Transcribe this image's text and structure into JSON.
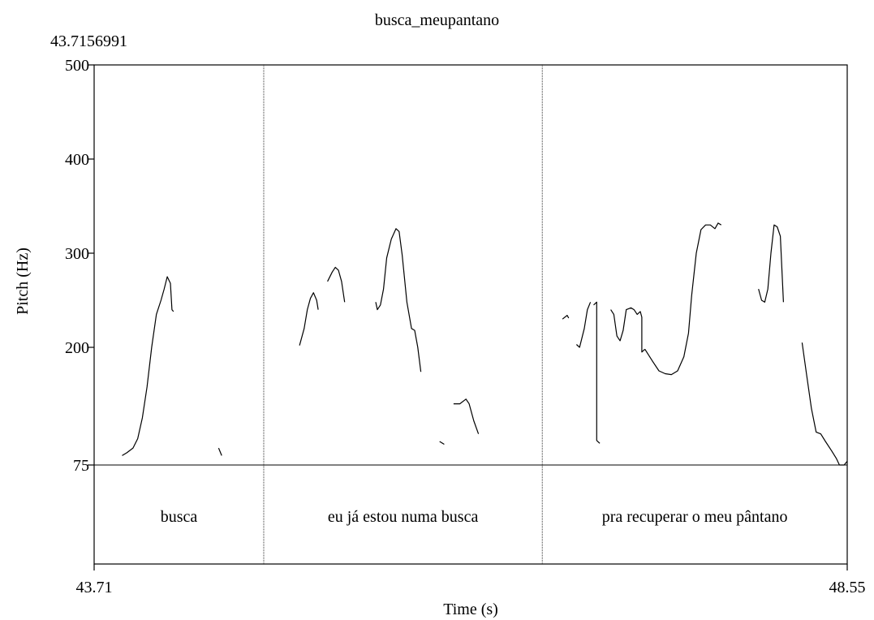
{
  "chart_data": {
    "type": "line",
    "title": "",
    "subtitle": "busca_meupantano",
    "start_readout": "43.7156991",
    "xlabel": "Time (s)",
    "ylabel": "Pitch (Hz)",
    "xlim": [
      43.71,
      48.55
    ],
    "ylim": [
      75,
      500
    ],
    "x_tick_labels": [
      "43.71",
      "48.55"
    ],
    "y_ticks": [
      {
        "value": 500,
        "label": "500"
      },
      {
        "value": 400,
        "label": "400"
      },
      {
        "value": 300,
        "label": "300"
      },
      {
        "value": 200,
        "label": "200"
      },
      {
        "value": 75,
        "label": "75"
      }
    ],
    "segment_boundaries": [
      44.8,
      46.59
    ],
    "segments": [
      {
        "start": 43.71,
        "end": 44.8,
        "text": "busca"
      },
      {
        "start": 44.8,
        "end": 46.59,
        "text": "eu já estou numa busca"
      },
      {
        "start": 46.59,
        "end": 48.55,
        "text": "pra recuperar o meu pântano"
      }
    ],
    "series": [
      {
        "values": [
          [
            43.89,
            85
          ],
          [
            43.92,
            88
          ],
          [
            43.96,
            93
          ],
          [
            43.99,
            103
          ],
          [
            44.02,
            125
          ],
          [
            44.05,
            158
          ],
          [
            44.08,
            200
          ],
          [
            44.11,
            235
          ],
          [
            44.14,
            250
          ],
          [
            44.16,
            262
          ],
          [
            44.18,
            275
          ],
          [
            44.2,
            268
          ],
          [
            44.21,
            240
          ],
          [
            44.22,
            238
          ]
        ]
      },
      {
        "values": [
          [
            44.51,
            93
          ],
          [
            44.53,
            85
          ]
        ]
      },
      {
        "values": [
          [
            45.03,
            202
          ],
          [
            45.06,
            220
          ],
          [
            45.08,
            240
          ],
          [
            45.1,
            252
          ],
          [
            45.12,
            258
          ],
          [
            45.14,
            250
          ],
          [
            45.15,
            240
          ]
        ]
      },
      {
        "values": [
          [
            45.21,
            270
          ],
          [
            45.24,
            280
          ],
          [
            45.26,
            285
          ],
          [
            45.28,
            282
          ],
          [
            45.3,
            270
          ],
          [
            45.32,
            248
          ]
        ]
      },
      {
        "values": [
          [
            45.52,
            248
          ],
          [
            45.53,
            240
          ],
          [
            45.55,
            245
          ],
          [
            45.57,
            262
          ],
          [
            45.59,
            295
          ],
          [
            45.62,
            315
          ],
          [
            45.65,
            326
          ],
          [
            45.67,
            323
          ],
          [
            45.69,
            298
          ],
          [
            45.72,
            248
          ],
          [
            45.75,
            220
          ],
          [
            45.77,
            218
          ],
          [
            45.79,
            200
          ],
          [
            45.81,
            174
          ]
        ]
      },
      {
        "values": [
          [
            45.93,
            100
          ],
          [
            45.96,
            97
          ]
        ]
      },
      {
        "values": [
          [
            46.02,
            140
          ],
          [
            46.06,
            140
          ],
          [
            46.1,
            145
          ],
          [
            46.12,
            140
          ],
          [
            46.15,
            122
          ],
          [
            46.18,
            108
          ]
        ]
      },
      {
        "values": [
          [
            46.72,
            230
          ],
          [
            46.75,
            234
          ],
          [
            46.76,
            231
          ]
        ]
      },
      {
        "values": [
          [
            46.81,
            203
          ],
          [
            46.83,
            200
          ],
          [
            46.86,
            220
          ],
          [
            46.88,
            240
          ],
          [
            46.9,
            248
          ]
        ]
      },
      {
        "values": [
          [
            46.92,
            245
          ],
          [
            46.94,
            248
          ],
          [
            46.94,
            140
          ],
          [
            46.94,
            101
          ],
          [
            46.96,
            98
          ]
        ]
      },
      {
        "values": [
          [
            47.03,
            240
          ],
          [
            47.05,
            235
          ],
          [
            47.07,
            212
          ],
          [
            47.09,
            207
          ],
          [
            47.11,
            218
          ],
          [
            47.13,
            240
          ],
          [
            47.16,
            242
          ],
          [
            47.18,
            240
          ],
          [
            47.2,
            235
          ],
          [
            47.22,
            238
          ],
          [
            47.23,
            232
          ],
          [
            47.23,
            195
          ],
          [
            47.25,
            198
          ]
        ]
      },
      {
        "values": [
          [
            47.25,
            198
          ],
          [
            47.3,
            185
          ],
          [
            47.34,
            175
          ],
          [
            47.38,
            172
          ],
          [
            47.42,
            171
          ],
          [
            47.46,
            175
          ],
          [
            47.5,
            190
          ],
          [
            47.53,
            215
          ],
          [
            47.55,
            255
          ],
          [
            47.58,
            300
          ],
          [
            47.61,
            325
          ],
          [
            47.64,
            330
          ],
          [
            47.67,
            330
          ],
          [
            47.7,
            326
          ],
          [
            47.72,
            332
          ],
          [
            47.74,
            330
          ]
        ]
      },
      {
        "values": [
          [
            47.98,
            262
          ],
          [
            48.0,
            250
          ],
          [
            48.02,
            248
          ],
          [
            48.04,
            262
          ],
          [
            48.06,
            300
          ],
          [
            48.08,
            330
          ],
          [
            48.1,
            328
          ],
          [
            48.12,
            318
          ],
          [
            48.14,
            248
          ]
        ]
      },
      {
        "values": [
          [
            48.26,
            205
          ],
          [
            48.29,
            170
          ],
          [
            48.32,
            135
          ],
          [
            48.35,
            110
          ],
          [
            48.38,
            108
          ],
          [
            48.41,
            100
          ],
          [
            48.45,
            90
          ],
          [
            48.48,
            82
          ],
          [
            48.5,
            75
          ],
          [
            48.53,
            75
          ],
          [
            48.55,
            79
          ]
        ]
      }
    ]
  }
}
